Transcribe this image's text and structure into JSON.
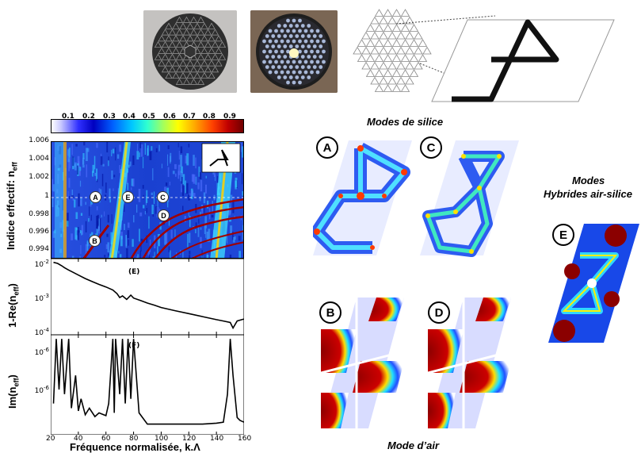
{
  "colorbar": {
    "ticks": [
      "0.1",
      "0.2",
      "0.3",
      "0.4",
      "0.5",
      "0.6",
      "0.7",
      "0.8",
      "0.9"
    ]
  },
  "panel_a": {
    "ylabel": "Indice effectif: n",
    "ylabel_sub": "eff",
    "yticks": [
      "1.006",
      "1.004",
      "1.002",
      "1",
      "0.998",
      "0.996",
      "0.994"
    ],
    "markers": [
      "A",
      "E",
      "C",
      "D",
      "B"
    ]
  },
  "panel_b": {
    "ylabel": "1-Re(n",
    "ylabel_sub": "eff",
    "ylabel_end": ")",
    "tag": "(E)",
    "yticks": [
      "10",
      "10",
      "10"
    ],
    "yexp": [
      "-2",
      "-3",
      "-4"
    ]
  },
  "panel_c": {
    "ylabel": "Im(n",
    "ylabel_sub": "eff",
    "ylabel_end": ")",
    "tag": "(F)",
    "yticks": [
      "10",
      "10"
    ],
    "yexp": [
      "-6",
      "-6"
    ]
  },
  "xticks": [
    "20",
    "40",
    "60",
    "80",
    "100",
    "120",
    "140",
    "160"
  ],
  "xlabel": "Fréquence normalisée, k.",
  "xlabel_symbol": "Λ",
  "titles": {
    "silice": "Modes de silice",
    "air": "Mode d’air",
    "hybrid_1": "Modes",
    "hybrid_2": "Hybrides air-silice"
  },
  "mode_labels": {
    "a": "A",
    "b": "B",
    "c": "C",
    "d": "D",
    "e": "E"
  },
  "chart_data": [
    {
      "type": "line",
      "ylabel": "1-Re(neff)",
      "tag": "(E)",
      "yscale": "log",
      "ylim": [
        0.0001,
        0.01
      ],
      "xlim": [
        20,
        160
      ],
      "x": [
        22,
        25,
        28,
        30,
        33,
        36,
        40,
        45,
        50,
        55,
        60,
        65,
        68,
        70,
        72,
        75,
        78,
        80,
        85,
        90,
        95,
        100,
        110,
        120,
        130,
        140,
        145,
        150,
        152,
        155,
        160
      ],
      "y": [
        0.008,
        0.0075,
        0.0065,
        0.0058,
        0.005,
        0.0044,
        0.0037,
        0.003,
        0.0025,
        0.0021,
        0.0018,
        0.0015,
        0.0012,
        0.00095,
        0.00105,
        0.00085,
        0.0011,
        0.00092,
        0.0008,
        0.00068,
        0.0006,
        0.00052,
        0.00043,
        0.00036,
        0.0003,
        0.00025,
        0.00023,
        0.00021,
        0.00015,
        0.00023,
        0.00026
      ]
    },
    {
      "type": "line",
      "ylabel": "Im(neff)",
      "tag": "(F)",
      "xlim": [
        20,
        160
      ],
      "x": [
        22,
        24,
        26,
        28,
        30,
        33,
        35,
        38,
        40,
        42,
        45,
        48,
        52,
        55,
        60,
        62,
        65,
        66,
        67,
        70,
        72,
        74,
        76,
        78,
        80,
        84,
        90,
        100,
        110,
        120,
        130,
        140,
        145,
        148,
        150,
        152,
        155,
        157,
        160
      ],
      "y": [
        0.3,
        0.99,
        0.45,
        0.99,
        0.4,
        0.99,
        0.25,
        0.6,
        0.22,
        0.35,
        0.18,
        0.25,
        0.16,
        0.2,
        0.17,
        0.3,
        0.99,
        0.2,
        0.99,
        0.4,
        0.99,
        0.3,
        0.99,
        0.35,
        0.99,
        0.2,
        0.08,
        0.08,
        0.08,
        0.08,
        0.08,
        0.09,
        0.1,
        0.4,
        0.99,
        0.6,
        0.15,
        0.12,
        0.1
      ]
    }
  ]
}
